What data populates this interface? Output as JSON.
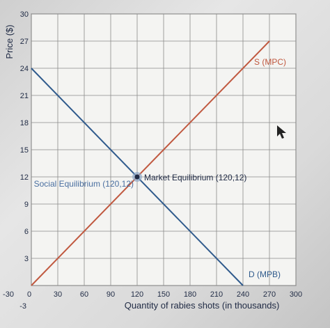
{
  "chart_data": {
    "type": "line",
    "ylabel": "Price ($)",
    "xlabel": "Quantity of rabies shots (in thousands)",
    "xlim": [
      0,
      300
    ],
    "ylim": [
      0,
      30
    ],
    "grid": true,
    "x_ticks": [
      "30",
      "60",
      "90",
      "120",
      "150",
      "180",
      "210",
      "240",
      "270",
      "300"
    ],
    "x_zero_label": "0",
    "x_neg_label": "-30",
    "y_ticks": [
      "3",
      "6",
      "9",
      "12",
      "15",
      "18",
      "21",
      "24",
      "27",
      "30"
    ],
    "y_neg_label": "-3",
    "series": [
      {
        "name": "S (MPC)",
        "color": "#c0583f",
        "x": [
          0,
          270
        ],
        "y": [
          0,
          27
        ]
      },
      {
        "name": "D (MPB)",
        "color": "#2f5a8c",
        "x": [
          0,
          240
        ],
        "y": [
          24,
          0
        ]
      }
    ],
    "points": [
      {
        "label": "Market Equilibrium (120,12)",
        "x": 120,
        "y": 12,
        "color": "#1f2a44"
      },
      {
        "label": "Social Equilibrium (120,12)",
        "x": 120,
        "y": 12,
        "color": "#4a6fa0"
      }
    ]
  }
}
